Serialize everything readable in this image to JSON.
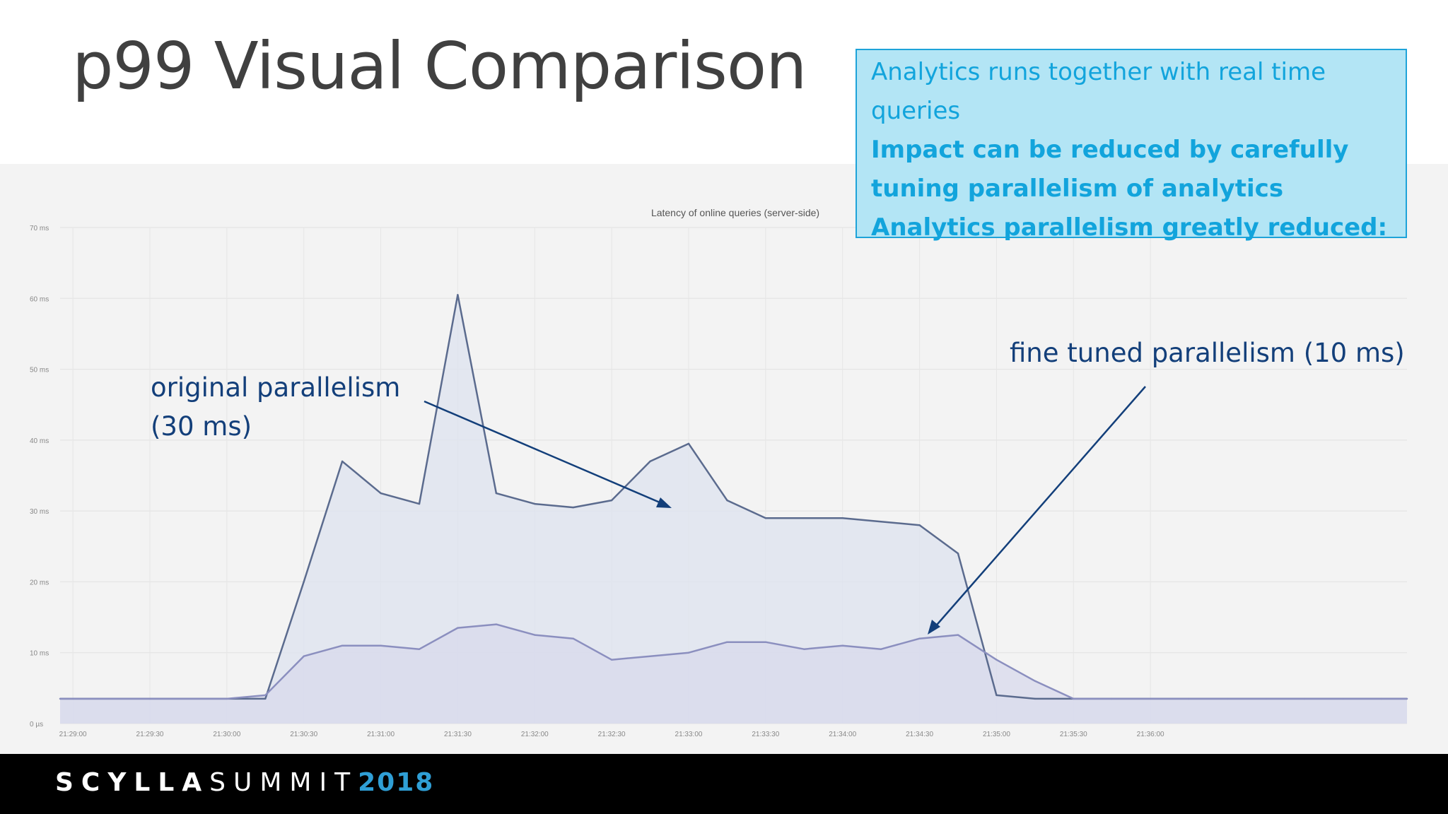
{
  "slide": {
    "title": "p99 Visual Comparison"
  },
  "callout": {
    "line1": "Analytics runs together with real time queries",
    "line2": "Impact can be reduced by carefully tuning parallelism of analytics",
    "line3": "Analytics parallelism greatly reduced:",
    "border_color": "#1ea3d9",
    "background": "#b3e5f5",
    "text_color": "#12a4dc"
  },
  "annotations": {
    "original_line1": "original parallelism",
    "original_line2": "(30 ms)",
    "tuned": "fine tuned parallelism (10 ms)",
    "color": "#133f7a"
  },
  "footer": {
    "brand_scylla": "SCYLLA",
    "brand_summit": "SUMMIT",
    "brand_year": "2018"
  },
  "chart_data": {
    "type": "area",
    "title": "Latency of online queries (server-side)",
    "xlabel": "",
    "ylabel": "",
    "ylim": [
      0,
      70
    ],
    "y_ticks": [
      0,
      10,
      20,
      30,
      40,
      50,
      60,
      70
    ],
    "y_tick_labels": [
      "0 µs",
      "10 ms",
      "20 ms",
      "30 ms",
      "40 ms",
      "50 ms",
      "60 ms",
      "70 ms"
    ],
    "x_tick_labels": [
      "21:29:00",
      "21:29:30",
      "21:30:00",
      "21:30:30",
      "21:31:00",
      "21:31:30",
      "21:32:00",
      "21:32:30",
      "21:33:00",
      "21:33:30",
      "21:34:00",
      "21:34:30",
      "21:35:00",
      "21:35:30",
      "21:36:00"
    ],
    "xlim_seconds_from_first_tick": [
      -5,
      520
    ],
    "grid": true,
    "series": [
      {
        "color": "#5b6b8e",
        "fill": "#dde3ef",
        "x": [
          -5,
          0,
          30,
          60,
          75,
          90,
          105,
          120,
          135,
          150,
          165,
          180,
          195,
          210,
          225,
          240,
          255,
          270,
          285,
          300,
          315,
          330,
          345,
          360,
          375,
          390,
          405,
          420,
          435,
          450,
          465,
          480,
          495,
          510,
          520
        ],
        "values": [
          3.5,
          3.5,
          3.5,
          3.5,
          3.5,
          20,
          37,
          32.5,
          31,
          60.5,
          32.5,
          31,
          30.5,
          31.5,
          37,
          39.5,
          31.5,
          29,
          29,
          29,
          28.5,
          28,
          24,
          4,
          3.5,
          3.5,
          3.5,
          3.5,
          3.5,
          3.5,
          3.5,
          3.5,
          3.5,
          3.5,
          3.5
        ]
      },
      {
        "color": "#8b8fbf",
        "fill": "#d8d9ec",
        "x": [
          -5,
          0,
          30,
          60,
          75,
          90,
          105,
          120,
          135,
          150,
          165,
          180,
          195,
          210,
          225,
          240,
          255,
          270,
          285,
          300,
          315,
          330,
          345,
          360,
          375,
          390,
          405,
          420,
          435,
          450,
          465,
          480,
          495,
          510,
          520
        ],
        "values": [
          3.5,
          3.5,
          3.5,
          3.5,
          4,
          9.5,
          11,
          11,
          10.5,
          13.5,
          14,
          12.5,
          12,
          9,
          9.5,
          10,
          11.5,
          11.5,
          10.5,
          11,
          10.5,
          12,
          12.5,
          9,
          6,
          3.5,
          3.5,
          3.5,
          3.5,
          3.5,
          3.5,
          3.5,
          3.5,
          3.5,
          3.5
        ]
      }
    ]
  }
}
